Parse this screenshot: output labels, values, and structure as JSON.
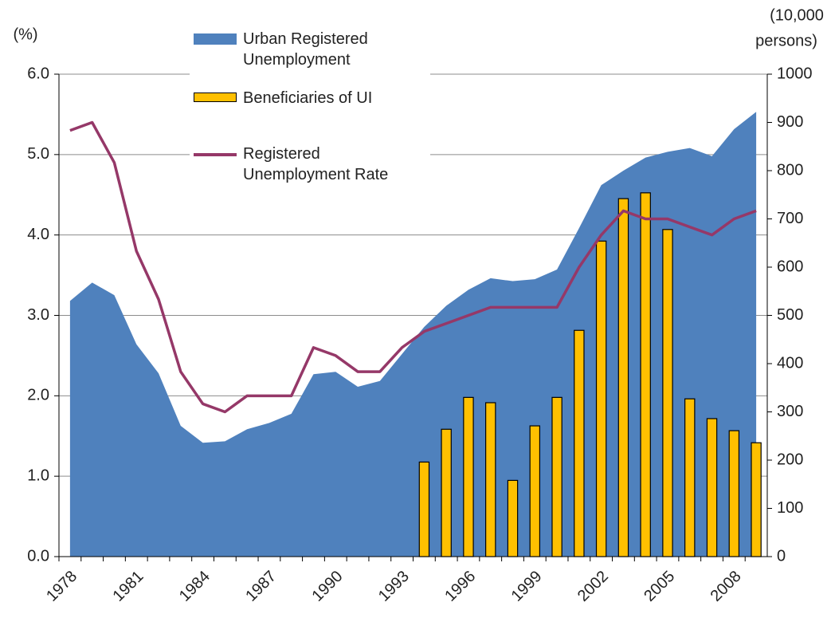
{
  "chart_data": {
    "type": "combo",
    "y_label": "(%)",
    "y2_label": [
      "(10,000",
      "persons)"
    ],
    "categories": [
      "1978",
      null,
      null,
      "1981",
      null,
      null,
      "1984",
      null,
      null,
      "1987",
      null,
      null,
      "1990",
      null,
      null,
      "1993",
      null,
      null,
      "1996",
      null,
      null,
      "1999",
      null,
      null,
      "2002",
      null,
      null,
      "2005",
      null,
      null,
      "2008",
      null
    ],
    "series": [
      {
        "name": "Urban Registered Unemployment",
        "type": "area",
        "axis": "y2",
        "color": "#4f81bd",
        "values": [
          530,
          568,
          542,
          440,
          380,
          271,
          236,
          239,
          264,
          277,
          296,
          378,
          383,
          352,
          364,
          420,
          476,
          520,
          553,
          577,
          571,
          575,
          595,
          681,
          770,
          800,
          827,
          839,
          847,
          830,
          886,
          922
        ]
      },
      {
        "name": "Beneficiaries of UI",
        "type": "bar",
        "axis": "y2",
        "color": "#ffc000",
        "values": [
          null,
          null,
          null,
          null,
          null,
          null,
          null,
          null,
          null,
          null,
          null,
          null,
          null,
          null,
          null,
          null,
          196,
          264,
          330,
          319,
          158,
          271,
          330,
          469,
          654,
          742,
          754,
          678,
          327,
          286,
          261,
          236
        ]
      },
      {
        "name": "Registered Unemployment Rate",
        "type": "line",
        "axis": "y",
        "color": "#953868",
        "values": [
          5.3,
          5.4,
          4.9,
          3.8,
          3.2,
          2.3,
          1.9,
          1.8,
          2.0,
          2.0,
          2.0,
          2.6,
          2.5,
          2.3,
          2.3,
          2.6,
          2.8,
          2.9,
          3.0,
          3.1,
          3.1,
          3.1,
          3.1,
          3.6,
          4.0,
          4.3,
          4.2,
          4.2,
          4.1,
          4.0,
          4.2,
          4.3
        ]
      }
    ],
    "ylim": [
      0,
      6
    ],
    "yticks": [
      {
        "value": 0,
        "label": "0.0"
      },
      {
        "value": 1,
        "label": "1.0"
      },
      {
        "value": 2,
        "label": "2.0"
      },
      {
        "value": 3,
        "label": "3.0"
      },
      {
        "value": 4,
        "label": "4.0"
      },
      {
        "value": 5,
        "label": "5.0"
      },
      {
        "value": 6,
        "label": "6.0"
      }
    ],
    "y2lim": [
      0,
      1000
    ],
    "y2ticks": [
      0,
      100,
      200,
      300,
      400,
      500,
      600,
      700,
      800,
      900,
      1000
    ],
    "grid": true
  }
}
